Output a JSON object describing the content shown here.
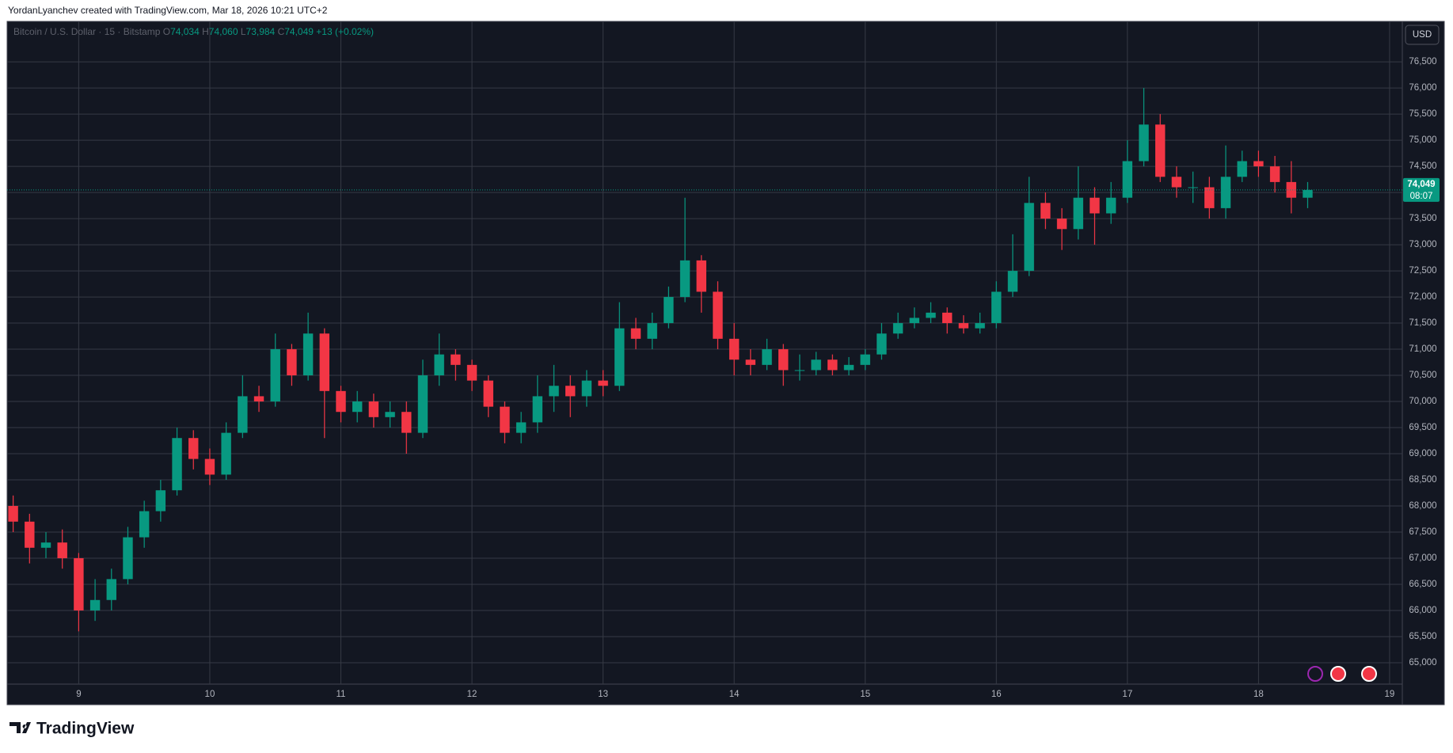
{
  "header": "YordanLyanchev created with TradingView.com, Mar 18, 2026 10:21 UTC+2",
  "brand": "TradingView",
  "chart_data": {
    "type": "candlestick",
    "legend": {
      "symbol": "Bitcoin / U.S. Dollar · 15 · Bitstamp",
      "items": [
        {
          "key": "O",
          "value": "74,034"
        },
        {
          "key": "H",
          "value": "74,060"
        },
        {
          "key": "L",
          "value": "73,984"
        },
        {
          "key": "C",
          "value": "74,049"
        }
      ],
      "change": "+13 (+0.02%)"
    },
    "currency": "USD",
    "last_price": {
      "value": 74049,
      "label": "74,049"
    },
    "countdown": "08:07",
    "up_color": "#089981",
    "down_color": "#f23645",
    "grid": true,
    "x": [
      8.5,
      8.625,
      8.75,
      8.875,
      9,
      9.125,
      9.25,
      9.375,
      9.5,
      9.625,
      9.75,
      9.875,
      10,
      10.125,
      10.25,
      10.375,
      10.5,
      10.625,
      10.75,
      10.875,
      11,
      11.125,
      11.25,
      11.375,
      11.5,
      11.625,
      11.75,
      11.875,
      12,
      12.125,
      12.25,
      12.375,
      12.5,
      12.625,
      12.75,
      12.875,
      13,
      13.125,
      13.25,
      13.375,
      13.5,
      13.625,
      13.75,
      13.875,
      14,
      14.125,
      14.25,
      14.375,
      14.5,
      14.625,
      14.75,
      14.875,
      15,
      15.125,
      15.25,
      15.375,
      15.5,
      15.625,
      15.75,
      15.875,
      16,
      16.125,
      16.25,
      16.375,
      16.5,
      16.625,
      16.75,
      16.875,
      17,
      17.125,
      17.25,
      17.375,
      17.5,
      17.625,
      17.75,
      17.875,
      18,
      18.125,
      18.25,
      18.375
    ],
    "open": [
      68000,
      67700,
      67200,
      67300,
      67000,
      66000,
      66200,
      66600,
      67400,
      67900,
      68300,
      69300,
      68900,
      68600,
      69400,
      70100,
      70000,
      71000,
      70500,
      71300,
      70200,
      69800,
      70000,
      69700,
      69800,
      69400,
      70500,
      70900,
      70700,
      70400,
      69900,
      69400,
      69600,
      70100,
      70300,
      70100,
      70400,
      70300,
      71400,
      71200,
      71500,
      72000,
      72700,
      72100,
      71200,
      70800,
      70700,
      71000,
      70600,
      70600,
      70800,
      70600,
      70700,
      70900,
      71300,
      71500,
      71600,
      71700,
      71500,
      71400,
      71500,
      72100,
      72500,
      73800,
      73500,
      73300,
      73900,
      73600,
      73900,
      74600,
      75300,
      74300,
      74100,
      74100,
      73700,
      74300,
      74600,
      74500,
      74200,
      73900
    ],
    "high": [
      68200,
      67850,
      67500,
      67550,
      67100,
      66600,
      66800,
      67600,
      68100,
      68500,
      69500,
      69450,
      69100,
      69600,
      70500,
      70300,
      71300,
      71100,
      71700,
      71400,
      70300,
      70200,
      70150,
      70000,
      70000,
      70800,
      71300,
      71000,
      70800,
      70500,
      70000,
      69800,
      70500,
      70700,
      70500,
      70600,
      70600,
      71900,
      71600,
      71700,
      72200,
      73900,
      72800,
      72300,
      71500,
      71000,
      71200,
      71100,
      70900,
      70950,
      70900,
      70850,
      71000,
      71500,
      71700,
      71800,
      71900,
      71800,
      71650,
      71700,
      72300,
      73200,
      74300,
      74000,
      73700,
      74500,
      74100,
      74200,
      75000,
      76000,
      75500,
      74500,
      74400,
      74300,
      74900,
      74800,
      74800,
      74700,
      74600,
      74200
    ],
    "low": [
      67500,
      66900,
      67000,
      66800,
      65600,
      65800,
      66000,
      66500,
      67200,
      67700,
      68200,
      68700,
      68400,
      68500,
      69300,
      69800,
      69900,
      70300,
      70400,
      69300,
      69600,
      69600,
      69500,
      69500,
      69000,
      69300,
      70300,
      70400,
      70200,
      69700,
      69200,
      69200,
      69400,
      69800,
      69700,
      69900,
      70100,
      70200,
      71000,
      71000,
      71400,
      71900,
      71700,
      71000,
      70500,
      70500,
      70600,
      70300,
      70400,
      70500,
      70500,
      70500,
      70600,
      70800,
      71200,
      71400,
      71500,
      71300,
      71300,
      71300,
      71400,
      72000,
      72400,
      73300,
      72900,
      73100,
      73000,
      73400,
      73800,
      74500,
      74200,
      73900,
      73800,
      73500,
      73500,
      74200,
      74300,
      74000,
      73600,
      73700
    ],
    "close": [
      67700,
      67200,
      67300,
      67000,
      66000,
      66200,
      66600,
      67400,
      67900,
      68300,
      69300,
      68900,
      68600,
      69400,
      70100,
      70000,
      71000,
      70500,
      71300,
      70200,
      69800,
      70000,
      69700,
      69800,
      69400,
      70500,
      70900,
      70700,
      70400,
      69900,
      69400,
      69600,
      70100,
      70300,
      70100,
      70400,
      70300,
      71400,
      71200,
      71500,
      72000,
      72700,
      72100,
      71200,
      70800,
      70700,
      71000,
      70600,
      70600,
      70800,
      70600,
      70700,
      70900,
      71300,
      71500,
      71600,
      71700,
      71500,
      71400,
      71500,
      72100,
      72500,
      73800,
      73500,
      73300,
      73900,
      73600,
      73900,
      74600,
      75300,
      74300,
      74100,
      74100,
      73700,
      74300,
      74600,
      74500,
      74200,
      73900,
      74049
    ],
    "xlim": [
      8.454,
      19.097
    ],
    "xticks": [
      9,
      10,
      11,
      12,
      13,
      14,
      15,
      16,
      17,
      18,
      19
    ],
    "ylim": [
      64590,
      77275
    ],
    "yticks": [
      {
        "value": 65000,
        "label": "65,000"
      },
      {
        "value": 65500,
        "label": "65,500"
      },
      {
        "value": 66000,
        "label": "66,000"
      },
      {
        "value": 66500,
        "label": "66,500"
      },
      {
        "value": 67000,
        "label": "67,000"
      },
      {
        "value": 67500,
        "label": "67,500"
      },
      {
        "value": 68000,
        "label": "68,000"
      },
      {
        "value": 68500,
        "label": "68,500"
      },
      {
        "value": 69000,
        "label": "69,000"
      },
      {
        "value": 69500,
        "label": "69,500"
      },
      {
        "value": 70000,
        "label": "70,000"
      },
      {
        "value": 70500,
        "label": "70,500"
      },
      {
        "value": 71000,
        "label": "71,000"
      },
      {
        "value": 71500,
        "label": "71,500"
      },
      {
        "value": 72000,
        "label": "72,000"
      },
      {
        "value": 72500,
        "label": "72,500"
      },
      {
        "value": 73000,
        "label": "73,000"
      },
      {
        "value": 73500,
        "label": "73,500"
      },
      {
        "value": 74000,
        "label": "74,000"
      },
      {
        "value": 74500,
        "label": "74,500"
      },
      {
        "value": 75000,
        "label": "75,000"
      },
      {
        "value": 75500,
        "label": "75,500"
      },
      {
        "value": 76000,
        "label": "76,000"
      },
      {
        "value": 76500,
        "label": "76,500"
      }
    ]
  }
}
